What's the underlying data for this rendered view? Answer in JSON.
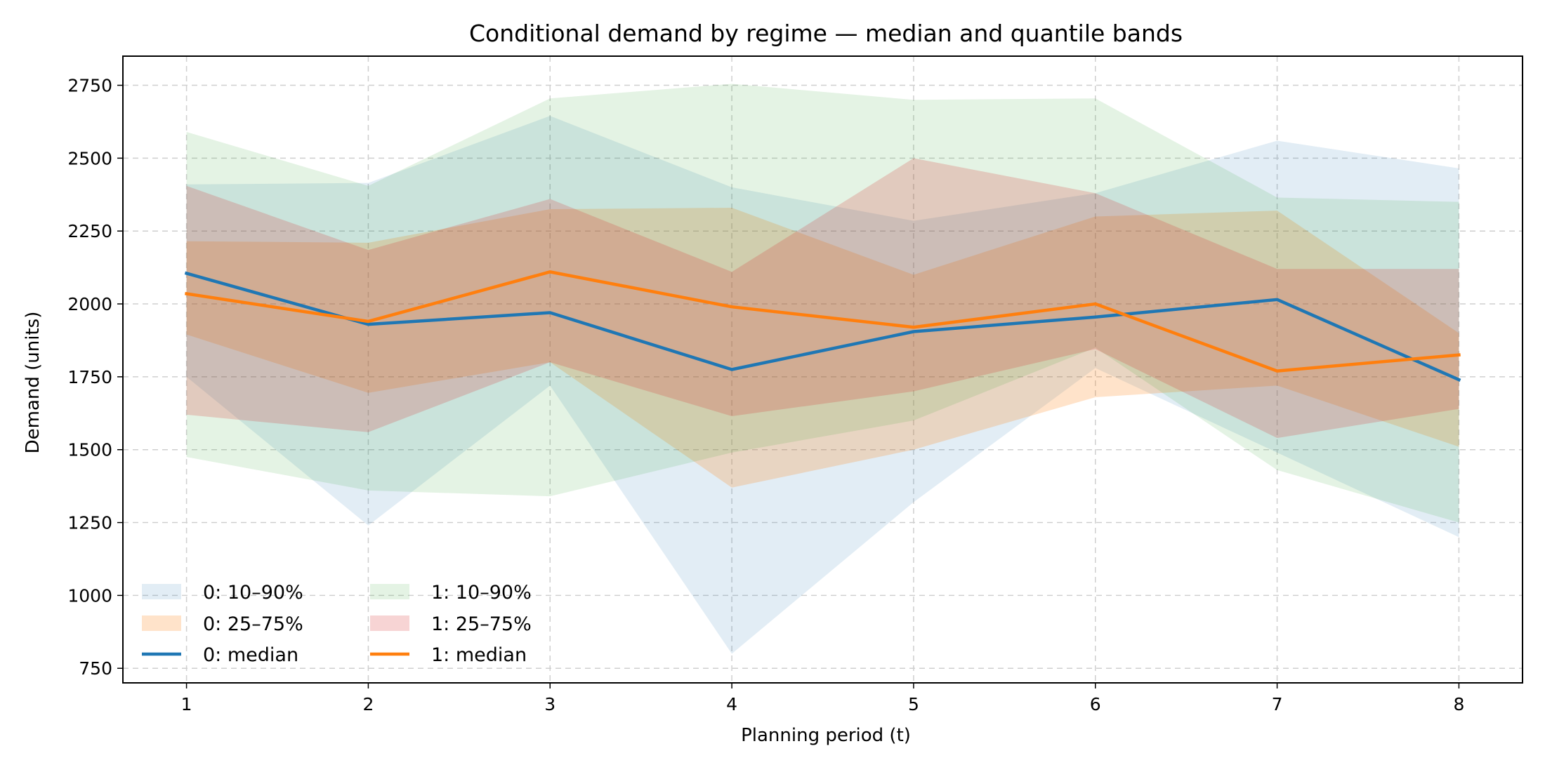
{
  "chart_data": {
    "type": "area",
    "title": "Conditional demand by regime — median and quantile bands",
    "xlabel": "Planning period (t)",
    "ylabel": "Demand (units)",
    "x": [
      1,
      2,
      3,
      4,
      5,
      6,
      7,
      8
    ],
    "x_ticks": [
      "1",
      "2",
      "3",
      "4",
      "5",
      "6",
      "7",
      "8"
    ],
    "y_ticks": [
      "750",
      "1000",
      "1250",
      "1500",
      "1750",
      "2000",
      "2250",
      "2500",
      "2750"
    ],
    "ylim": [
      700,
      2850
    ],
    "xlim": [
      0.65,
      8.35
    ],
    "grid": true,
    "legend_placement": "lower-left",
    "bands": [
      {
        "name": "0: 10–90%",
        "color": "#1f77b4",
        "opacity": 0.13,
        "lower": [
          1750,
          1240,
          1720,
          800,
          1320,
          1780,
          1490,
          1200
        ],
        "upper": [
          2410,
          2415,
          2645,
          2400,
          2285,
          2380,
          2560,
          2465
        ]
      },
      {
        "name": "0: 25–75%",
        "color": "#ff7f0e",
        "opacity": 0.22,
        "lower": [
          1895,
          1695,
          1800,
          1370,
          1500,
          1680,
          1720,
          1510
        ],
        "upper": [
          2215,
          2210,
          2325,
          2330,
          2100,
          2300,
          2320,
          1900
        ]
      },
      {
        "name": "1: 10–90%",
        "color": "#2ca02c",
        "opacity": 0.13,
        "lower": [
          1475,
          1360,
          1340,
          1490,
          1600,
          1850,
          1430,
          1250
        ],
        "upper": [
          2590,
          2405,
          2705,
          2755,
          2700,
          2705,
          2365,
          2350
        ]
      },
      {
        "name": "1: 25–75%",
        "color": "#d62728",
        "opacity": 0.2,
        "lower": [
          1620,
          1560,
          1800,
          1615,
          1700,
          1845,
          1540,
          1640
        ],
        "upper": [
          2405,
          2185,
          2360,
          2110,
          2500,
          2380,
          2120,
          2120
        ]
      }
    ],
    "series": [
      {
        "name": "0: median",
        "color": "#1f77b4",
        "values": [
          2105,
          1930,
          1970,
          1775,
          1905,
          1955,
          2015,
          1740
        ]
      },
      {
        "name": "1: median",
        "color": "#ff7f0e",
        "values": [
          2035,
          1940,
          2110,
          1990,
          1920,
          2000,
          1770,
          1825
        ]
      }
    ]
  }
}
